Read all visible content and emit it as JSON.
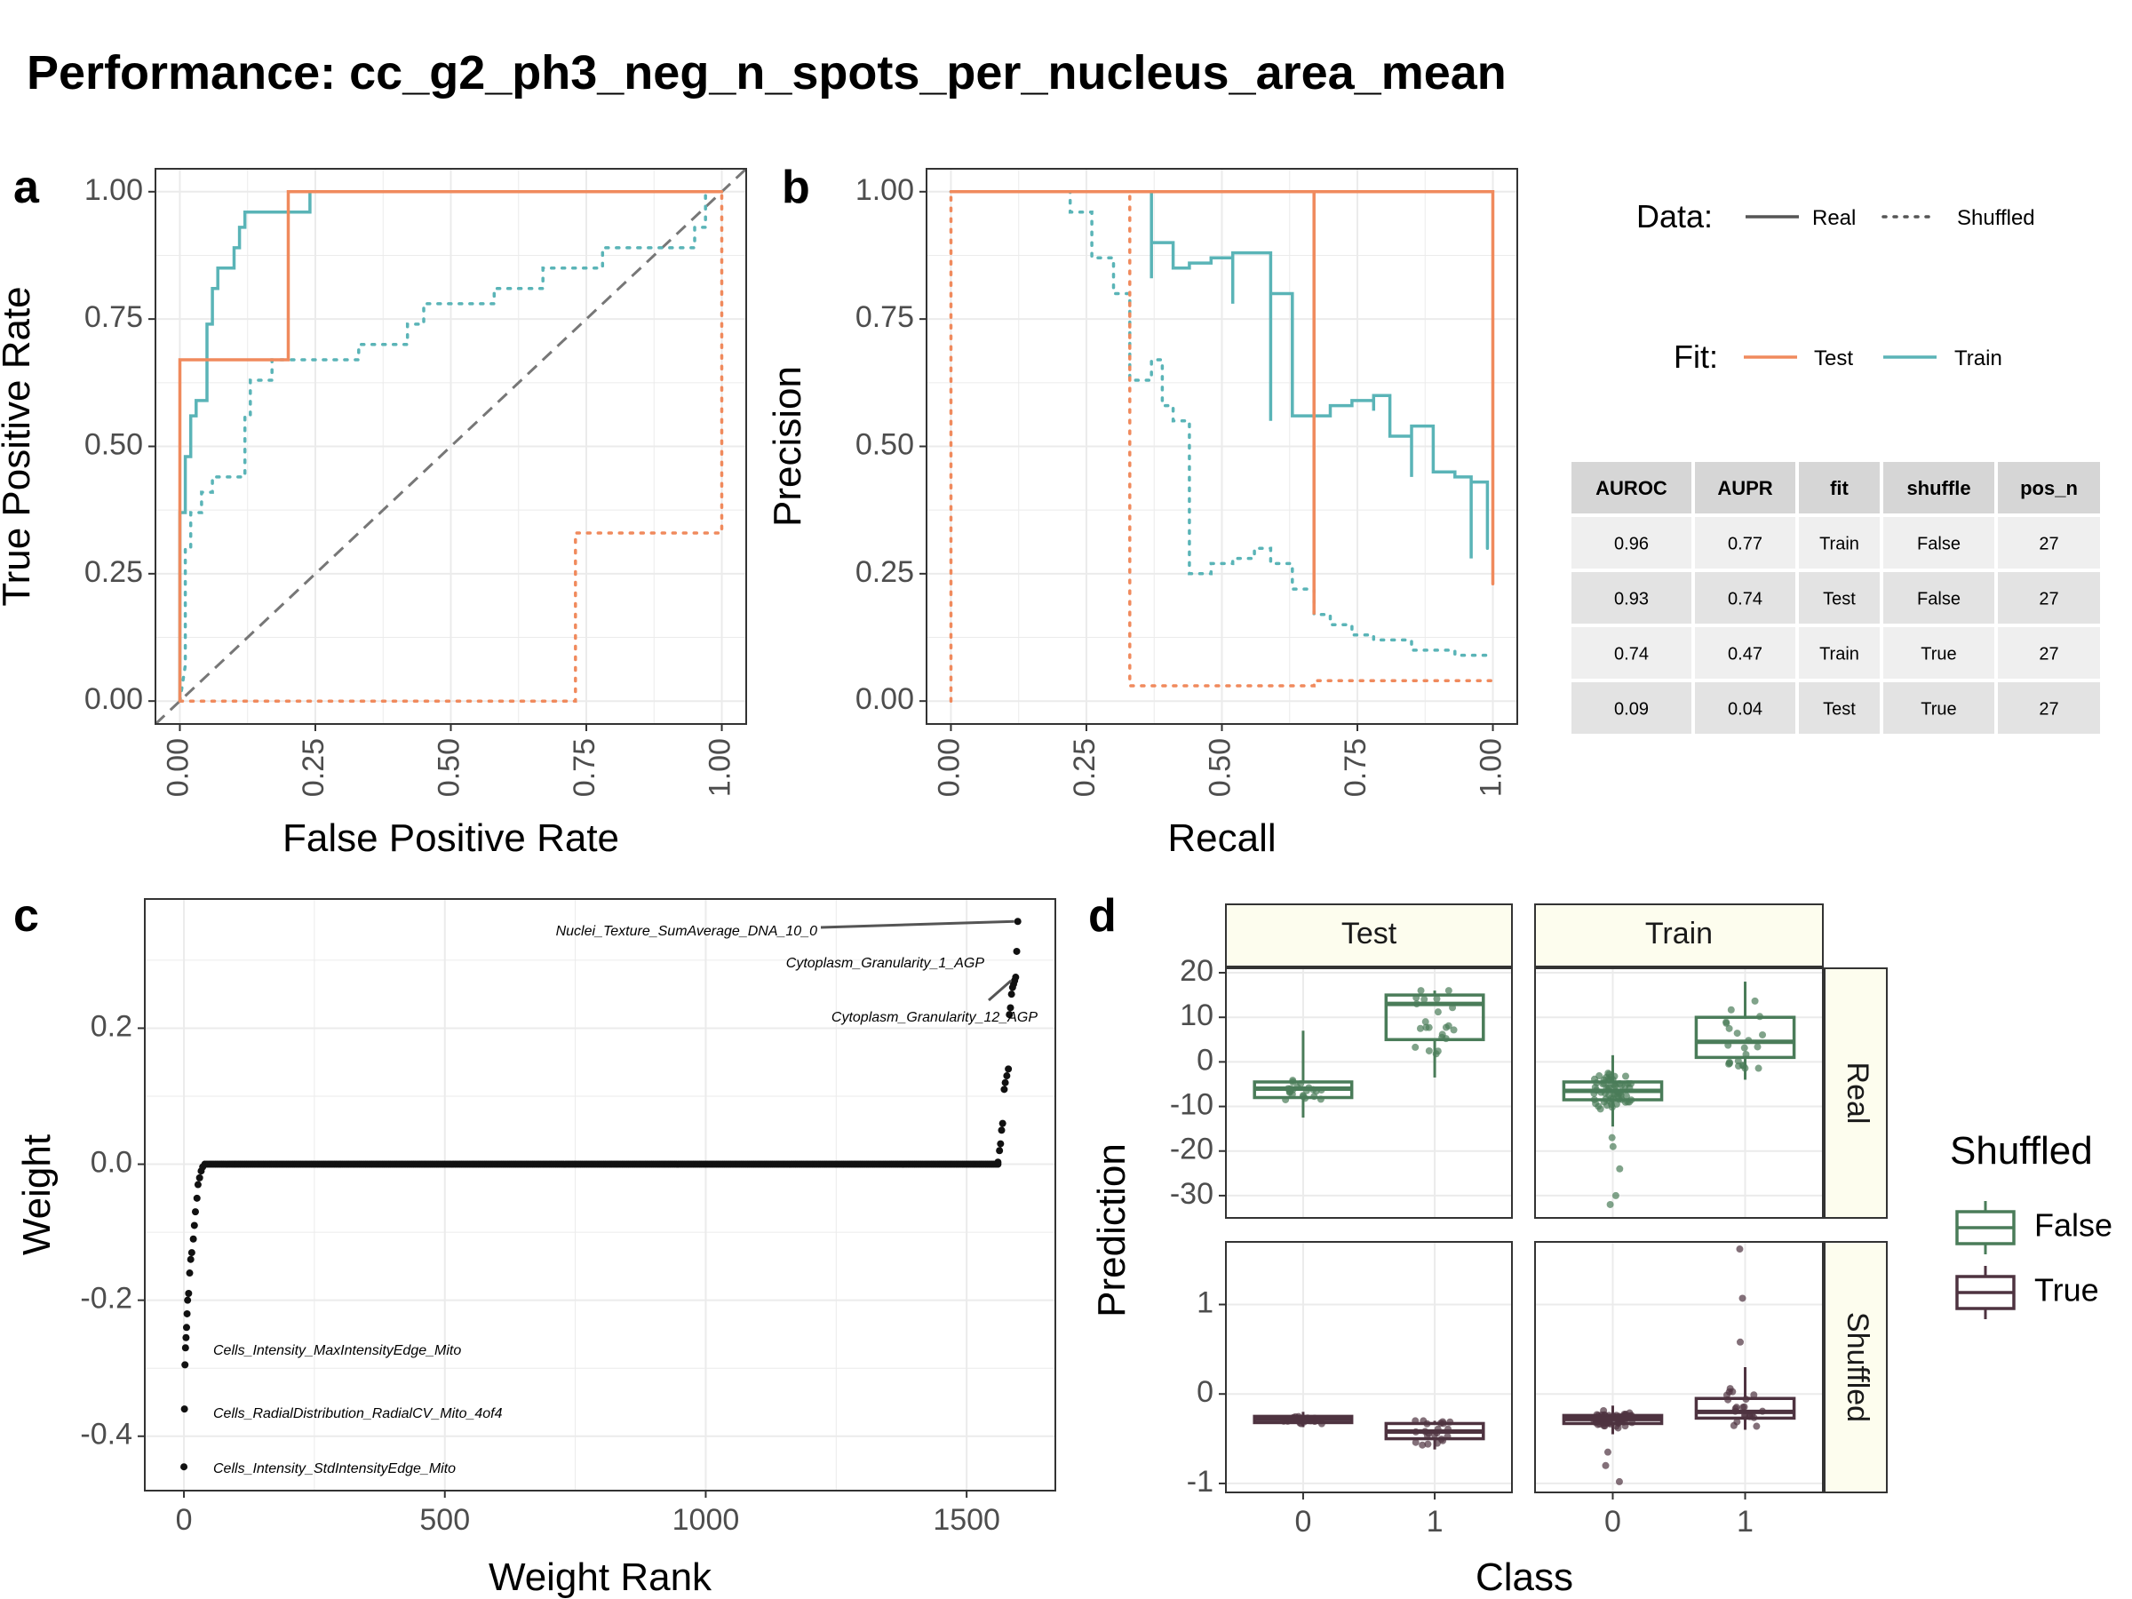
{
  "title": "Performance: cc_g2_ph3_neg_n_spots_per_nucleus_area_mean",
  "colors": {
    "test": "#F08A5D",
    "train": "#5AB4B7",
    "false": "#4A7C59",
    "true": "#4E3340",
    "strip": "#FDFDEE",
    "grid": "#EBEBEB"
  },
  "legend": {
    "data_title": "Data:",
    "real": "Real",
    "shuffled": "Shuffled",
    "fit_title": "Fit:",
    "test": "Test",
    "train": "Train"
  },
  "metrics_table": {
    "columns": [
      "AUROC",
      "AUPR",
      "fit",
      "shuffle",
      "pos_n"
    ],
    "rows": [
      [
        "0.96",
        "0.77",
        "Train",
        "False",
        "27"
      ],
      [
        "0.93",
        "0.74",
        "Test",
        "False",
        "27"
      ],
      [
        "0.74",
        "0.47",
        "Train",
        "True",
        "27"
      ],
      [
        "0.09",
        "0.04",
        "Test",
        "True",
        "27"
      ]
    ]
  },
  "chart_data": [
    {
      "panel": "a",
      "type": "line",
      "xlabel": "False Positive Rate",
      "ylabel": "True Positive Rate",
      "xlim": [
        0,
        1
      ],
      "ylim": [
        0,
        1
      ],
      "xticks": [
        "0.00",
        "0.25",
        "0.50",
        "0.75",
        "1.00"
      ],
      "yticks": [
        "0.00",
        "0.25",
        "0.50",
        "0.75",
        "1.00"
      ],
      "series": [
        {
          "fit": "Train",
          "data": "Real",
          "points": [
            [
              0,
              0
            ],
            [
              0,
              0.37
            ],
            [
              0.01,
              0.37
            ],
            [
              0.01,
              0.48
            ],
            [
              0.02,
              0.48
            ],
            [
              0.02,
              0.56
            ],
            [
              0.03,
              0.56
            ],
            [
              0.03,
              0.59
            ],
            [
              0.05,
              0.59
            ],
            [
              0.05,
              0.74
            ],
            [
              0.06,
              0.74
            ],
            [
              0.06,
              0.81
            ],
            [
              0.07,
              0.81
            ],
            [
              0.07,
              0.85
            ],
            [
              0.1,
              0.85
            ],
            [
              0.1,
              0.89
            ],
            [
              0.11,
              0.89
            ],
            [
              0.11,
              0.93
            ],
            [
              0.12,
              0.93
            ],
            [
              0.12,
              0.96
            ],
            [
              0.24,
              0.96
            ],
            [
              0.24,
              1
            ],
            [
              1,
              1
            ]
          ]
        },
        {
          "fit": "Test",
          "data": "Real",
          "points": [
            [
              0,
              0
            ],
            [
              0,
              0.67
            ],
            [
              0.2,
              0.67
            ],
            [
              0.2,
              1
            ],
            [
              1,
              1
            ]
          ]
        },
        {
          "fit": "Train",
          "data": "Shuffled",
          "points": [
            [
              0,
              0
            ],
            [
              0.01,
              0.07
            ],
            [
              0.01,
              0.3
            ],
            [
              0.02,
              0.3
            ],
            [
              0.02,
              0.37
            ],
            [
              0.04,
              0.37
            ],
            [
              0.04,
              0.41
            ],
            [
              0.06,
              0.41
            ],
            [
              0.06,
              0.44
            ],
            [
              0.12,
              0.44
            ],
            [
              0.12,
              0.56
            ],
            [
              0.13,
              0.56
            ],
            [
              0.13,
              0.63
            ],
            [
              0.17,
              0.63
            ],
            [
              0.17,
              0.67
            ],
            [
              0.33,
              0.67
            ],
            [
              0.33,
              0.7
            ],
            [
              0.42,
              0.7
            ],
            [
              0.42,
              0.74
            ],
            [
              0.45,
              0.74
            ],
            [
              0.45,
              0.78
            ],
            [
              0.58,
              0.78
            ],
            [
              0.58,
              0.81
            ],
            [
              0.67,
              0.81
            ],
            [
              0.67,
              0.85
            ],
            [
              0.78,
              0.85
            ],
            [
              0.78,
              0.89
            ],
            [
              0.95,
              0.89
            ],
            [
              0.95,
              0.93
            ],
            [
              0.97,
              0.93
            ],
            [
              0.97,
              1
            ],
            [
              1,
              1
            ]
          ]
        },
        {
          "fit": "Test",
          "data": "Shuffled",
          "points": [
            [
              0,
              0
            ],
            [
              0.73,
              0
            ],
            [
              0.73,
              0.33
            ],
            [
              1,
              0.33
            ],
            [
              1,
              1
            ]
          ]
        }
      ],
      "reference_line": [
        [
          0,
          0
        ],
        [
          1,
          1
        ]
      ]
    },
    {
      "panel": "b",
      "type": "line",
      "xlabel": "Recall",
      "ylabel": "Precision",
      "xlim": [
        0,
        1
      ],
      "ylim": [
        0,
        1
      ],
      "xticks": [
        "0.00",
        "0.25",
        "0.50",
        "0.75",
        "1.00"
      ],
      "yticks": [
        "0.00",
        "0.25",
        "0.50",
        "0.75",
        "1.00"
      ],
      "series": [
        {
          "fit": "Train",
          "data": "Real",
          "points": [
            [
              0,
              1
            ],
            [
              0.37,
              1
            ],
            [
              0.37,
              0.83
            ],
            [
              0.37,
              0.9
            ],
            [
              0.41,
              0.9
            ],
            [
              0.41,
              0.85
            ],
            [
              0.44,
              0.85
            ],
            [
              0.44,
              0.86
            ],
            [
              0.48,
              0.86
            ],
            [
              0.48,
              0.87
            ],
            [
              0.52,
              0.87
            ],
            [
              0.52,
              0.78
            ],
            [
              0.52,
              0.88
            ],
            [
              0.59,
              0.88
            ],
            [
              0.59,
              0.55
            ],
            [
              0.59,
              0.8
            ],
            [
              0.63,
              0.8
            ],
            [
              0.63,
              0.56
            ],
            [
              0.7,
              0.56
            ],
            [
              0.7,
              0.58
            ],
            [
              0.74,
              0.58
            ],
            [
              0.74,
              0.59
            ],
            [
              0.78,
              0.59
            ],
            [
              0.78,
              0.57
            ],
            [
              0.78,
              0.6
            ],
            [
              0.81,
              0.6
            ],
            [
              0.81,
              0.52
            ],
            [
              0.85,
              0.52
            ],
            [
              0.85,
              0.44
            ],
            [
              0.85,
              0.54
            ],
            [
              0.89,
              0.54
            ],
            [
              0.89,
              0.45
            ],
            [
              0.93,
              0.45
            ],
            [
              0.93,
              0.44
            ],
            [
              0.96,
              0.44
            ],
            [
              0.96,
              0.28
            ],
            [
              0.96,
              0.43
            ],
            [
              0.99,
              0.43
            ],
            [
              0.99,
              0.3
            ]
          ]
        },
        {
          "fit": "Test",
          "data": "Real",
          "points": [
            [
              0,
              1
            ],
            [
              0.67,
              1
            ],
            [
              0.67,
              0.17
            ],
            [
              0.67,
              1
            ],
            [
              1,
              1
            ],
            [
              1,
              0.23
            ]
          ]
        },
        {
          "fit": "Train",
          "data": "Shuffled",
          "points": [
            [
              0,
              1
            ],
            [
              0.22,
              1
            ],
            [
              0.22,
              0.96
            ],
            [
              0.26,
              0.96
            ],
            [
              0.26,
              0.87
            ],
            [
              0.3,
              0.87
            ],
            [
              0.3,
              0.8
            ],
            [
              0.33,
              0.8
            ],
            [
              0.33,
              0.63
            ],
            [
              0.37,
              0.63
            ],
            [
              0.37,
              0.67
            ],
            [
              0.39,
              0.67
            ],
            [
              0.39,
              0.58
            ],
            [
              0.41,
              0.58
            ],
            [
              0.41,
              0.55
            ],
            [
              0.44,
              0.55
            ],
            [
              0.44,
              0.45
            ],
            [
              0.44,
              0.25
            ],
            [
              0.48,
              0.25
            ],
            [
              0.48,
              0.27
            ],
            [
              0.52,
              0.27
            ],
            [
              0.52,
              0.28
            ],
            [
              0.56,
              0.28
            ],
            [
              0.56,
              0.3
            ],
            [
              0.59,
              0.3
            ],
            [
              0.59,
              0.27
            ],
            [
              0.63,
              0.27
            ],
            [
              0.63,
              0.22
            ],
            [
              0.67,
              0.22
            ],
            [
              0.67,
              0.17
            ],
            [
              0.7,
              0.17
            ],
            [
              0.7,
              0.15
            ],
            [
              0.74,
              0.15
            ],
            [
              0.74,
              0.13
            ],
            [
              0.78,
              0.13
            ],
            [
              0.78,
              0.12
            ],
            [
              0.85,
              0.12
            ],
            [
              0.85,
              0.1
            ],
            [
              0.93,
              0.1
            ],
            [
              0.93,
              0.09
            ],
            [
              1,
              0.09
            ]
          ]
        },
        {
          "fit": "Test",
          "data": "Shuffled",
          "points": [
            [
              0,
              0
            ],
            [
              0,
              1
            ],
            [
              0.33,
              1
            ],
            [
              0.33,
              0.03
            ],
            [
              0.67,
              0.03
            ],
            [
              0.67,
              0.04
            ],
            [
              1,
              0.04
            ]
          ]
        }
      ]
    },
    {
      "panel": "c",
      "type": "scatter",
      "xlabel": "Weight Rank",
      "ylabel": "Weight",
      "xlim": [
        -75,
        1670
      ],
      "ylim": [
        -0.48,
        0.39
      ],
      "xticks": [
        0,
        500,
        1000,
        1500
      ],
      "yticks": [
        -0.4,
        -0.2,
        0.0,
        0.2
      ],
      "ytick_labels": [
        "-0.4",
        "-0.2",
        "0.0",
        "0.2"
      ],
      "zero_run": [
        40,
        1560
      ],
      "points": [
        [
          0,
          -0.445
        ],
        [
          1,
          -0.36
        ],
        [
          2,
          -0.295
        ],
        [
          3,
          -0.27
        ],
        [
          4,
          -0.255
        ],
        [
          5,
          -0.24
        ],
        [
          6,
          -0.22
        ],
        [
          7,
          -0.2
        ],
        [
          9,
          -0.19
        ],
        [
          11,
          -0.16
        ],
        [
          13,
          -0.14
        ],
        [
          15,
          -0.13
        ],
        [
          18,
          -0.11
        ],
        [
          20,
          -0.09
        ],
        [
          22,
          -0.07
        ],
        [
          25,
          -0.05
        ],
        [
          27,
          -0.03
        ],
        [
          30,
          -0.02
        ],
        [
          33,
          -0.01
        ],
        [
          36,
          -0.004
        ],
        [
          1560,
          0.003
        ],
        [
          1563,
          0.02
        ],
        [
          1565,
          0.03
        ],
        [
          1567,
          0.05
        ],
        [
          1569,
          0.06
        ],
        [
          1572,
          0.11
        ],
        [
          1574,
          0.12
        ],
        [
          1577,
          0.13
        ],
        [
          1580,
          0.14
        ],
        [
          1582,
          0.22
        ],
        [
          1584,
          0.23
        ],
        [
          1586,
          0.25
        ],
        [
          1588,
          0.26
        ],
        [
          1590,
          0.265
        ],
        [
          1592,
          0.27
        ],
        [
          1594,
          0.275
        ],
        [
          1596,
          0.313
        ],
        [
          1598,
          0.357
        ]
      ],
      "annotations": [
        {
          "text": "Nuclei_Texture_SumAverage_DNA_10_0",
          "point": [
            1598,
            0.357
          ]
        },
        {
          "text": "Cytoplasm_Granularity_1_AGP",
          "point": [
            1596,
            0.313
          ]
        },
        {
          "text": "Cytoplasm_Granularity_12_AGP",
          "point": [
            1592,
            0.27
          ]
        },
        {
          "text": "Cells_Intensity_MaxIntensityEdge_Mito",
          "point": [
            2,
            -0.295
          ]
        },
        {
          "text": "Cells_RadialDistribution_RadialCV_Mito_4of4",
          "point": [
            1,
            -0.36
          ]
        },
        {
          "text": "Cells_Intensity_StdIntensityEdge_Mito",
          "point": [
            0,
            -0.445
          ]
        }
      ]
    },
    {
      "panel": "d",
      "type": "box",
      "xlabel": "Class",
      "ylabel": "Prediction",
      "columns": [
        "Test",
        "Train"
      ],
      "rows": [
        "Real",
        "Shuffled"
      ],
      "x_categories": [
        "0",
        "1"
      ],
      "legend_title": "Shuffled",
      "legend_items": [
        "False",
        "True"
      ],
      "real_ylim": [
        -35,
        21
      ],
      "real_yticks": [
        20,
        10,
        0,
        -10,
        -20,
        -30
      ],
      "shuffled_ylim": [
        -1.1,
        1.7
      ],
      "shuffled_yticks": [
        1,
        0,
        -1
      ],
      "boxes": [
        {
          "fit": "Test",
          "shuffled": "False",
          "class": "0",
          "q1": -8,
          "median": -6,
          "q3": -4.5,
          "lo": -12.5,
          "hi": 7
        },
        {
          "fit": "Test",
          "shuffled": "False",
          "class": "1",
          "q1": 5,
          "median": 13,
          "q3": 15,
          "lo": -3.5,
          "hi": 16
        },
        {
          "fit": "Train",
          "shuffled": "False",
          "class": "0",
          "q1": -8.5,
          "median": -6.5,
          "q3": -4.5,
          "lo": -14.5,
          "hi": 1.5
        },
        {
          "fit": "Train",
          "shuffled": "False",
          "class": "1",
          "q1": 1,
          "median": 4.5,
          "q3": 10,
          "lo": -4,
          "hi": 18
        },
        {
          "fit": "Test",
          "shuffled": "True",
          "class": "0",
          "q1": -0.32,
          "median": -0.28,
          "q3": -0.25,
          "lo": -0.37,
          "hi": -0.2
        },
        {
          "fit": "Test",
          "shuffled": "True",
          "class": "1",
          "q1": -0.5,
          "median": -0.42,
          "q3": -0.33,
          "lo": -0.62,
          "hi": -0.3
        },
        {
          "fit": "Train",
          "shuffled": "True",
          "class": "0",
          "q1": -0.33,
          "median": -0.28,
          "q3": -0.24,
          "lo": -0.45,
          "hi": -0.13
        },
        {
          "fit": "Train",
          "shuffled": "True",
          "class": "1",
          "q1": -0.27,
          "median": -0.2,
          "q3": -0.05,
          "lo": -0.4,
          "hi": 0.3
        }
      ],
      "outliers": [
        {
          "fit": "Train",
          "shuffled": "False",
          "class": "0",
          "values": [
            -17,
            -19,
            -24,
            -30,
            -32
          ]
        },
        {
          "fit": "Train",
          "shuffled": "True",
          "class": "0",
          "values": [
            -0.65,
            -0.8,
            -0.98
          ]
        },
        {
          "fit": "Train",
          "shuffled": "True",
          "class": "1",
          "values": [
            0.58,
            1.07,
            1.62
          ]
        }
      ]
    }
  ]
}
